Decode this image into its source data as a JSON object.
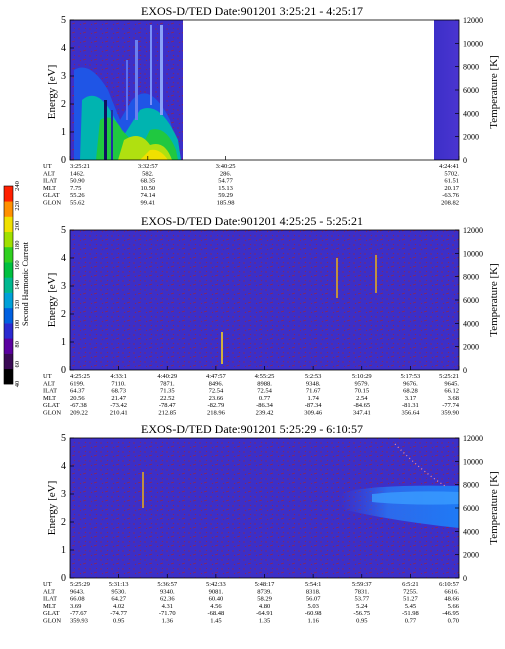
{
  "colors": {
    "background_blue": "#3c2fc8",
    "speckle_red": "#9a2040",
    "colorbar": [
      "#000000",
      "#3a0a55",
      "#5a00a0",
      "#2a2ad0",
      "#0060e0",
      "#00a0d8",
      "#00b890",
      "#00c040",
      "#30d020",
      "#a0e000",
      "#f0e000",
      "#ff9000",
      "#ff2000"
    ]
  },
  "colorbar": {
    "label": "Second Harmonic Current",
    "ticks": [
      "40",
      "60",
      "80",
      "100",
      "120",
      "140",
      "160",
      "180",
      "200",
      "220",
      "240"
    ]
  },
  "chart_data": [
    {
      "type": "heatmap",
      "title": "EXOS-D/TED   Date:901201   3:25:21 - 4:25:17",
      "ylabel": "Energy [eV]",
      "ylim": [
        0,
        5
      ],
      "yticks": [
        "0",
        "1",
        "2",
        "3",
        "4",
        "5"
      ],
      "y2label": "Temperature [K]",
      "y2lim": [
        0,
        12000
      ],
      "y2ticks": [
        "0",
        "2000",
        "4000",
        "6000",
        "8000",
        "10000",
        "12000"
      ],
      "data_gap": [
        0.468,
        0.92
      ],
      "row_labels": [
        "UT",
        "ALT",
        "ILAT",
        "MLT",
        "GLAT",
        "GLON"
      ],
      "columns": [
        {
          "pos": 0.0,
          "values": [
            "3:25:21",
            "1462.",
            "50.90",
            "7.75",
            "55.26",
            "55.62"
          ]
        },
        {
          "pos": 0.2,
          "values": [
            "3:32:57",
            "582.",
            "68.35",
            "10.50",
            "74.14",
            "99.41"
          ]
        },
        {
          "pos": 0.4,
          "values": [
            "3:40:25",
            "286.",
            "54.77",
            "15.13",
            "59.29",
            "185.98"
          ]
        },
        {
          "pos": 1.0,
          "values": [
            "4:24:41",
            "5702.",
            "61.51",
            "20.17",
            "-63.76",
            "208.82"
          ]
        }
      ]
    },
    {
      "type": "heatmap",
      "title": "EXOS-D/TED   Date:901201   4:25:25 - 5:25:21",
      "ylabel": "Energy [eV]",
      "ylim": [
        0,
        5
      ],
      "yticks": [
        "0",
        "1",
        "2",
        "3",
        "4",
        "5"
      ],
      "y2label": "Temperature [K]",
      "y2lim": [
        0,
        12000
      ],
      "y2ticks": [
        "0",
        "2000",
        "4000",
        "6000",
        "8000",
        "10000",
        "12000"
      ],
      "row_labels": [
        "UT",
        "ALT",
        "ILAT",
        "MLT",
        "GLAT",
        "GLON"
      ],
      "columns": [
        {
          "pos": 0.0,
          "values": [
            "4:25:25",
            "6199.",
            "64.37",
            "20.56",
            "-67.38",
            "209.22"
          ]
        },
        {
          "pos": 0.125,
          "values": [
            "4:33:1",
            "7110.",
            "68.73",
            "21.47",
            "-73.42",
            "210.41"
          ]
        },
        {
          "pos": 0.25,
          "values": [
            "4:40:29",
            "7871.",
            "71.35",
            "22.52",
            "-78.47",
            "212.85"
          ]
        },
        {
          "pos": 0.375,
          "values": [
            "4:47:57",
            "8496.",
            "72.54",
            "23.66",
            "-82.79",
            "218.96"
          ]
        },
        {
          "pos": 0.5,
          "values": [
            "4:55:25",
            "8988.",
            "72.54",
            "0.77",
            "-86.34",
            "239.42"
          ]
        },
        {
          "pos": 0.625,
          "values": [
            "5:2:53",
            "9348.",
            "71.67",
            "1.74",
            "-87.34",
            "309.46"
          ]
        },
        {
          "pos": 0.75,
          "values": [
            "5:10:29",
            "9579.",
            "70.15",
            "2.54",
            "-84.65",
            "347.41"
          ]
        },
        {
          "pos": 0.875,
          "values": [
            "5:17:53",
            "9676.",
            "68.28",
            "3.17",
            "-81.31",
            "356.64"
          ]
        },
        {
          "pos": 1.0,
          "values": [
            "5:25:21",
            "9645.",
            "66.12",
            "3.68",
            "-77.74",
            "359.90"
          ]
        }
      ]
    },
    {
      "type": "heatmap",
      "title": "EXOS-D/TED   Date:901201   5:25:29 - 6:10:57",
      "ylabel": "Energy [eV]",
      "ylim": [
        0,
        5
      ],
      "yticks": [
        "0",
        "1",
        "2",
        "3",
        "4",
        "5"
      ],
      "y2label": "Temperature [K]",
      "y2lim": [
        0,
        12000
      ],
      "y2ticks": [
        "0",
        "2000",
        "4000",
        "6000",
        "8000",
        "10000",
        "12000"
      ],
      "row_labels": [
        "UT",
        "ALT",
        "ILAT",
        "MLT",
        "GLAT",
        "GLON"
      ],
      "columns": [
        {
          "pos": 0.0,
          "values": [
            "5:25:29",
            "9643.",
            "66.08",
            "3.69",
            "-77.67",
            "359.93"
          ]
        },
        {
          "pos": 0.125,
          "values": [
            "5:31:13",
            "9530.",
            "64.27",
            "4.02",
            "-74.77",
            "0.95"
          ]
        },
        {
          "pos": 0.25,
          "values": [
            "5:36:57",
            "9340.",
            "62.36",
            "4.31",
            "-71.70",
            "1.36"
          ]
        },
        {
          "pos": 0.375,
          "values": [
            "5:42:33",
            "9081.",
            "60.40",
            "4.56",
            "-68.48",
            "1.45"
          ]
        },
        {
          "pos": 0.5,
          "values": [
            "5:48:17",
            "8739.",
            "58.29",
            "4.80",
            "-64.91",
            "1.35"
          ]
        },
        {
          "pos": 0.625,
          "values": [
            "5:54:1",
            "8318.",
            "56.07",
            "5.03",
            "-60.98",
            "1.16"
          ]
        },
        {
          "pos": 0.75,
          "values": [
            "5:59:37",
            "7831.",
            "53.77",
            "5.24",
            "-56.75",
            "0.95"
          ]
        },
        {
          "pos": 0.875,
          "values": [
            "6:5:21",
            "7255.",
            "51.27",
            "5.45",
            "-51.98",
            "0.77"
          ]
        },
        {
          "pos": 1.0,
          "values": [
            "6:10:57",
            "6616.",
            "48.66",
            "5.66",
            "-46.95",
            "0.70"
          ]
        }
      ]
    }
  ]
}
